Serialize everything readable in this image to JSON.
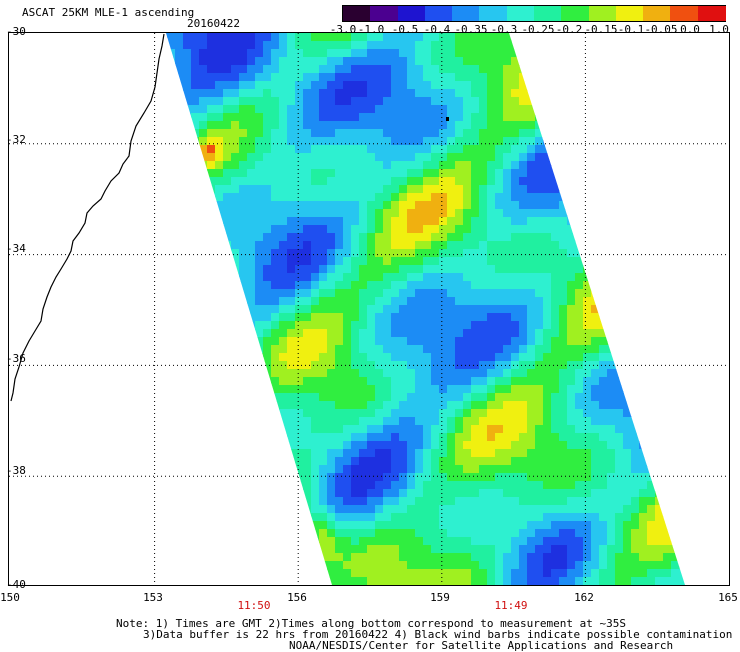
{
  "header": {
    "title": "ASCAT 25KM MLE-1 ascending",
    "date": "20160422"
  },
  "colorbar": {
    "ticks": [
      "-3.0",
      "-1.0",
      "-0.5",
      "-0.4",
      "-0.35",
      "-0.3",
      "-0.25",
      "-0.2",
      "-0.15",
      "-0.1",
      "-0.05",
      "0.0",
      "1.0"
    ],
    "colors": [
      "#2a0030",
      "#4b0090",
      "#1e14d0",
      "#1f4ff0",
      "#1c8cf5",
      "#27c6f0",
      "#2ef0d0",
      "#20f0a0",
      "#30ee40",
      "#a0f020",
      "#f0f010",
      "#f0b010",
      "#f05010",
      "#e01010"
    ]
  },
  "map": {
    "lat_labels": [
      "-30",
      "-32",
      "-34",
      "-36",
      "-38",
      "-40"
    ],
    "lon_labels": [
      "150",
      "153",
      "156",
      "159",
      "162",
      "165"
    ],
    "time_labels": [
      "11:50",
      "11:49"
    ],
    "land_color": "#ffffff",
    "coast_color": "#000000"
  },
  "notes": {
    "line1": "Note: 1) Times are GMT 2)Times along bottom correspond to measurement at ~35S",
    "line2": "3)Data buffer is 22 hrs from 20160422 4) Black wind barbs indicate possible contamination",
    "line3": "NOAA/NESDIS/Center for Satellite Applications and Research"
  }
}
